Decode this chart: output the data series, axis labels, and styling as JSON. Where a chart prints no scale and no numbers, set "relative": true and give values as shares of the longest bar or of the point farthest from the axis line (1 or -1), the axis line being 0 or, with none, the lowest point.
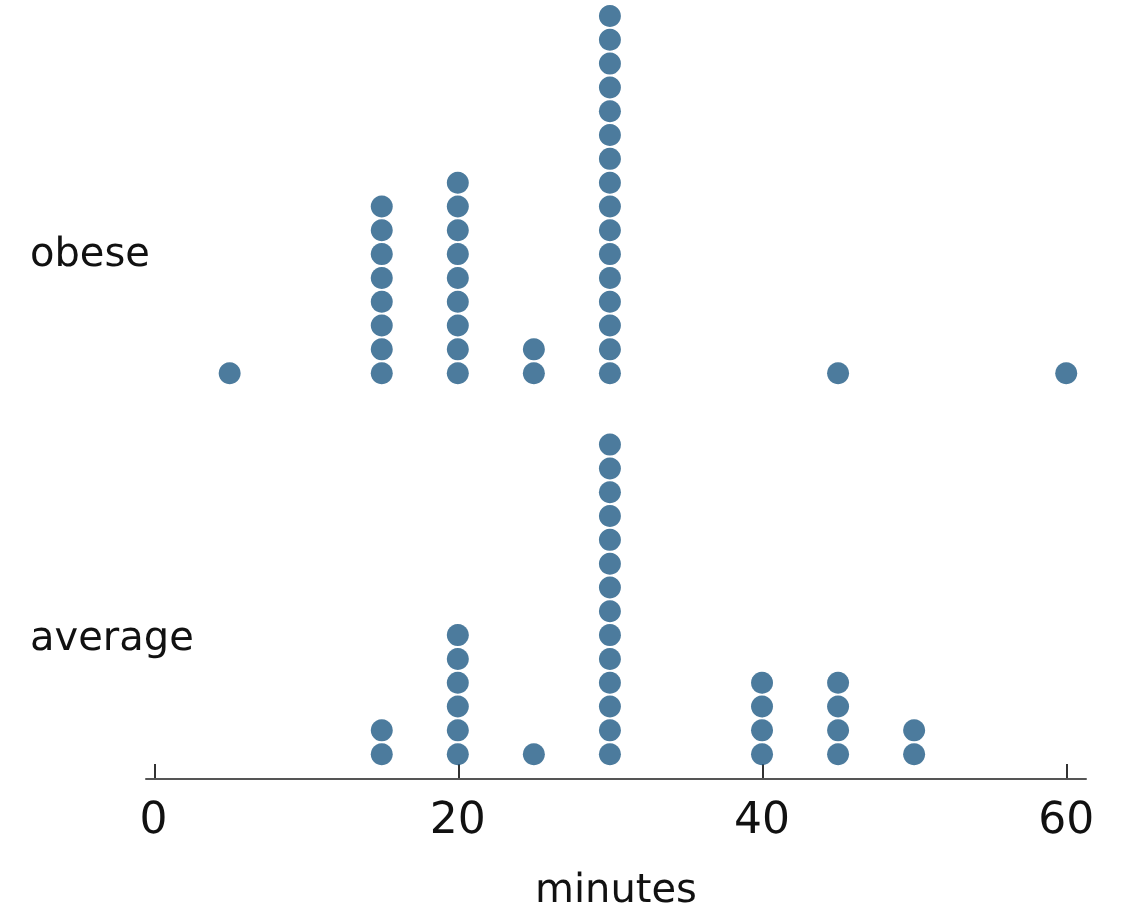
{
  "chart_data": {
    "type": "scatter",
    "xlabel": "minutes",
    "relative": true,
    "xlim": [
      -0.5,
      61.3
    ],
    "xticks": [
      0,
      20,
      40,
      60
    ],
    "tick_labels": "x",
    "marker": "circle",
    "grid": false,
    "annotations": [
      "obese",
      "average"
    ],
    "series": [
      {
        "color": "#1f5a85",
        "x": [
          5,
          15,
          15,
          15,
          15,
          15,
          15,
          15,
          15,
          20,
          20,
          20,
          20,
          20,
          20,
          20,
          20,
          20,
          25,
          25,
          30,
          30,
          30,
          30,
          30,
          30,
          30,
          30,
          30,
          30,
          30,
          30,
          30,
          30,
          30,
          30,
          45,
          60
        ],
        "values": [
          0.53125,
          0.53125,
          0.5625,
          0.59375,
          0.625,
          0.65625,
          0.6875,
          0.71875,
          0.75,
          0.53125,
          0.5625,
          0.59375,
          0.625,
          0.65625,
          0.6875,
          0.71875,
          0.75,
          0.78125,
          0.53125,
          0.5625,
          0.53125,
          0.5625,
          0.59375,
          0.625,
          0.65625,
          0.6875,
          0.71875,
          0.75,
          0.78125,
          0.8125,
          0.84375,
          0.875,
          0.90625,
          0.9375,
          0.96875,
          1,
          0.53125,
          0.53125
        ]
      },
      {
        "color": "#1f5a85",
        "x": [
          15,
          15,
          20,
          20,
          20,
          20,
          20,
          20,
          25,
          30,
          30,
          30,
          30,
          30,
          30,
          30,
          30,
          30,
          30,
          30,
          30,
          30,
          30,
          40,
          40,
          40,
          40,
          45,
          45,
          45,
          45,
          50,
          50
        ],
        "values": [
          0.03125,
          0.0625,
          0.03125,
          0.0625,
          0.09375,
          0.125,
          0.15625,
          0.1875,
          0.03125,
          0.03125,
          0.0625,
          0.09375,
          0.125,
          0.15625,
          0.1875,
          0.21875,
          0.25,
          0.28125,
          0.3125,
          0.34375,
          0.375,
          0.40625,
          0.4375,
          0.03125,
          0.0625,
          0.09375,
          0.125,
          0.03125,
          0.0625,
          0.09375,
          0.125,
          0.03125,
          0.0625
        ]
      }
    ]
  }
}
